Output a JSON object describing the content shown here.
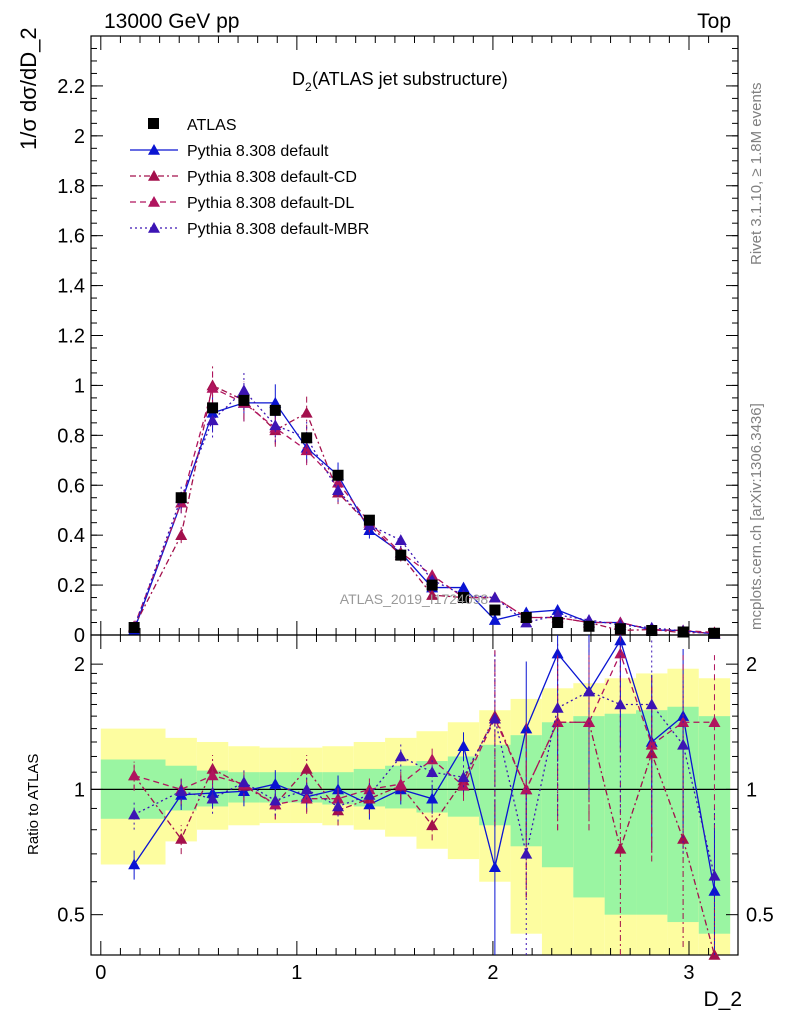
{
  "header": {
    "left": "13000 GeV pp",
    "right": "Top"
  },
  "side_text": {
    "rivet": "Rivet 3.1.10, ≥ 1.8M events",
    "mcplots": "mcplots.cern.ch [arXiv:1306.3436]"
  },
  "watermark": "ATLAS_2019_I1724098",
  "main_title": "D",
  "main_title_sub": "2",
  "main_title_rest": " (ATLAS jet substructure)",
  "ylabel_main": "1/σ dσ/dD_2",
  "ylabel_ratio": "Ratio to ATLAS",
  "xlabel": "D_2",
  "colors": {
    "atlas": "#000000",
    "default": "#0a14d2",
    "cd": "#a3104c",
    "dl": "#b0145e",
    "mbr": "#3c14b4",
    "band_inner": "#9af5a2",
    "band_outer": "#fdfda0"
  },
  "chart_data": [
    {
      "type": "line",
      "title": "D2 (ATLAS jet substructure)",
      "xlabel": "D_2",
      "ylabel": "1/σ dσ/dD_2",
      "xlim": [
        -0.05,
        3.25
      ],
      "ylim": [
        0,
        2.4
      ],
      "x_ticks": [
        "0",
        "1",
        "2",
        "3"
      ],
      "y_ticks": [
        "0",
        "0.2",
        "0.4",
        "0.6",
        "0.8",
        "1",
        "1.2",
        "1.4",
        "1.6",
        "1.8",
        "2",
        "2.2"
      ],
      "legend_position": "top-left",
      "x": [
        0.17,
        0.41,
        0.57,
        0.73,
        0.89,
        1.05,
        1.21,
        1.37,
        1.53,
        1.69,
        1.85,
        2.01,
        2.17,
        2.33,
        2.49,
        2.65,
        2.81,
        2.97,
        3.13
      ],
      "series": [
        {
          "name": "ATLAS",
          "style": "markers",
          "values": [
            0.03,
            0.55,
            0.91,
            0.94,
            0.9,
            0.79,
            0.64,
            0.46,
            0.32,
            0.2,
            0.15,
            0.1,
            0.07,
            0.05,
            0.035,
            0.025,
            0.018,
            0.012,
            0.007
          ]
        },
        {
          "name": "Pythia 8.308 default",
          "style": "solid",
          "values": [
            0.02,
            0.53,
            0.89,
            0.93,
            0.93,
            0.75,
            0.64,
            0.42,
            0.33,
            0.19,
            0.19,
            0.06,
            0.09,
            0.1,
            0.05,
            0.05,
            0.02,
            0.018,
            0.004
          ]
        },
        {
          "name": "Pythia 8.308 default-CD",
          "style": "dashdot",
          "values": [
            0.033,
            0.4,
            1.0,
            0.94,
            0.82,
            0.89,
            0.57,
            0.44,
            0.32,
            0.16,
            0.15,
            0.15,
            0.07,
            0.07,
            0.05,
            0.018,
            0.022,
            0.009,
            0.01
          ]
        },
        {
          "name": "Pythia 8.308 default-DL",
          "style": "dashed",
          "values": [
            0.035,
            0.53,
            0.99,
            0.93,
            0.83,
            0.74,
            0.61,
            0.45,
            0.33,
            0.24,
            0.15,
            0.15,
            0.07,
            0.07,
            0.05,
            0.05,
            0.022,
            0.018,
            0.01
          ]
        },
        {
          "name": "Pythia 8.308 default-MBR",
          "style": "dotted",
          "values": [
            0.03,
            0.55,
            0.86,
            0.98,
            0.84,
            0.79,
            0.58,
            0.44,
            0.38,
            0.22,
            0.16,
            0.15,
            0.05,
            0.08,
            0.06,
            0.04,
            0.029,
            0.016,
            0.004
          ]
        }
      ]
    },
    {
      "type": "line",
      "xlabel": "D_2",
      "ylabel": "Ratio to ATLAS",
      "xlim": [
        -0.05,
        3.25
      ],
      "ylim": [
        0.4,
        2.35
      ],
      "y_scale": "log",
      "y_ticks": [
        "0.5",
        "1",
        "2"
      ],
      "x_ticks": [
        "0",
        "1",
        "2",
        "3"
      ],
      "x": [
        0.17,
        0.41,
        0.57,
        0.73,
        0.89,
        1.05,
        1.21,
        1.37,
        1.53,
        1.69,
        1.85,
        2.01,
        2.17,
        2.33,
        2.49,
        2.65,
        2.81,
        2.97,
        3.13
      ],
      "band_edges": [
        0.0,
        0.33,
        0.49,
        0.65,
        0.81,
        0.97,
        1.13,
        1.29,
        1.45,
        1.61,
        1.77,
        1.93,
        2.09,
        2.25,
        2.41,
        2.57,
        2.73,
        2.89,
        3.05,
        3.21
      ],
      "band_inner_low": [
        0.85,
        0.89,
        0.91,
        0.93,
        0.93,
        0.93,
        0.92,
        0.91,
        0.9,
        0.88,
        0.86,
        0.82,
        0.73,
        0.65,
        0.55,
        0.5,
        0.5,
        0.48,
        0.45
      ],
      "band_inner_high": [
        1.18,
        1.14,
        1.11,
        1.1,
        1.1,
        1.1,
        1.1,
        1.12,
        1.14,
        1.17,
        1.2,
        1.28,
        1.35,
        1.45,
        1.5,
        1.52,
        1.55,
        1.58,
        1.5
      ],
      "band_outer_low": [
        0.66,
        0.75,
        0.8,
        0.82,
        0.83,
        0.83,
        0.82,
        0.8,
        0.77,
        0.72,
        0.68,
        0.6,
        0.45,
        0.4,
        0.4,
        0.4,
        0.4,
        0.4,
        0.4
      ],
      "band_outer_high": [
        1.4,
        1.33,
        1.3,
        1.27,
        1.26,
        1.26,
        1.27,
        1.3,
        1.33,
        1.38,
        1.45,
        1.55,
        1.65,
        1.75,
        1.8,
        1.85,
        1.9,
        1.95,
        1.85
      ],
      "series": [
        {
          "name": "Pythia 8.308 default",
          "style": "solid",
          "values": [
            0.66,
            0.97,
            0.98,
            0.99,
            1.03,
            0.96,
            1.0,
            0.92,
            1.0,
            0.95,
            1.27,
            0.65,
            1.4,
            2.12,
            1.72,
            2.28,
            1.3,
            1.5,
            0.57
          ]
        },
        {
          "name": "Pythia 8.308 default-CD",
          "style": "dashdot",
          "values": [
            1.08,
            0.76,
            1.12,
            1.02,
            0.92,
            1.12,
            0.89,
            0.95,
            1.02,
            0.82,
            1.05,
            1.5,
            1.0,
            1.45,
            1.45,
            0.72,
            1.22,
            0.76,
            0.38
          ]
        },
        {
          "name": "Pythia 8.308 default-DL",
          "style": "dashed",
          "values": [
            1.08,
            1.0,
            1.08,
            1.03,
            0.92,
            0.95,
            0.95,
            1.0,
            1.03,
            1.18,
            1.02,
            1.48,
            1.0,
            1.45,
            1.45,
            2.12,
            1.28,
            1.45,
            1.45
          ]
        },
        {
          "name": "Pythia 8.308 default-MBR",
          "style": "dotted",
          "values": [
            0.87,
            0.99,
            0.95,
            1.04,
            0.94,
            1.0,
            0.91,
            0.97,
            1.2,
            1.1,
            1.07,
            1.48,
            0.7,
            1.57,
            1.72,
            1.6,
            1.6,
            1.28,
            0.62
          ]
        }
      ]
    }
  ]
}
